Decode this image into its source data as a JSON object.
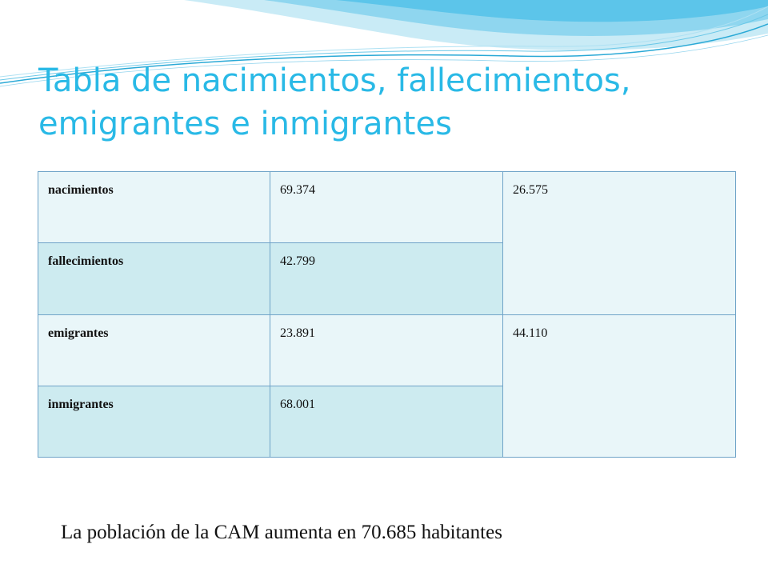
{
  "title": "Tabla de nacimientos, fallecimientos, emigrantes e inmigrantes",
  "table": {
    "rows": [
      {
        "label": "nacimientos",
        "value": "69.374"
      },
      {
        "label": "fallecimientos",
        "value": "42.799"
      },
      {
        "label": "emigrantes",
        "value": "23.891"
      },
      {
        "label": "inmigrantes",
        "value": "68.001"
      }
    ],
    "merged": [
      "26.575",
      "44.110"
    ]
  },
  "summary": "La población de la CAM aumenta en 70.685 habitantes",
  "colors": {
    "title": "#29b9e6",
    "row_light": "#e9f6f9",
    "row_dark": "#cdebf0",
    "border": "#6fa3c8"
  }
}
